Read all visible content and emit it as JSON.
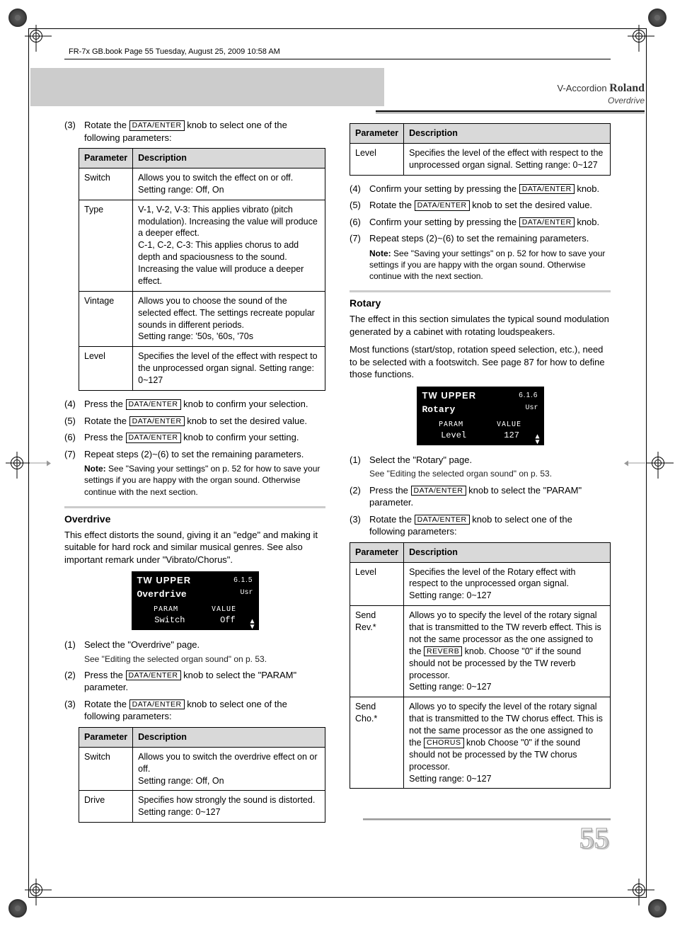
{
  "book_header": "FR-7x GB.book  Page 55  Tuesday, August 25, 2009  10:58 AM",
  "header": {
    "left": "V-Accordion",
    "brand": "Roland",
    "sub": "Overdrive"
  },
  "data_enter": "DATA/ENTER",
  "reverb_btn": "REVERB",
  "chorus_btn": "CHORUS",
  "left": {
    "step3": "Rotate the",
    "step3b": "knob to select one of the following parameters:",
    "table1": {
      "h1": "Parameter",
      "h2": "Description",
      "rows": [
        {
          "p": "Switch",
          "d": "Allows you to switch the effect on or off. Setting range: Off, On"
        },
        {
          "p": "Type",
          "d": "V-1, V-2, V-3: This applies vibrato (pitch modulation). Increasing the value will produce a deeper effect.\nC-1, C-2, C-3: This applies chorus to add depth and spaciousness to the sound. Increasing the value will produce a deeper effect."
        },
        {
          "p": "Vintage",
          "d": "Allows you to choose the sound of the selected effect. The settings recreate popular sounds in different periods.\nSetting range: '50s, '60s, '70s"
        },
        {
          "p": "Level",
          "d": "Specifies the level of the effect with respect to the unprocessed organ signal. Setting range: 0~127"
        }
      ]
    },
    "step4a": "Press the",
    "step4b": "knob to confirm your selection.",
    "step5a": "Rotate the",
    "step5b": "knob to set the desired value.",
    "step6a": "Press the",
    "step6b": "knob to confirm your setting.",
    "step7": "Repeat steps (2)~(6) to set the remaining parameters.",
    "step7note": "See \"Saving your settings\" on p. 52 for how to save your settings if you are happy with the organ sound. Otherwise continue with the next section.",
    "overdrive_h": "Overdrive",
    "overdrive_p": "This effect distorts the sound, giving it an \"edge\" and making it suitable for hard rock and similar musical genres. See also important remark under \"Vibrato/Chorus\".",
    "lcd1": {
      "top": "TW UPPER",
      "num": "6.1.5",
      "name": "Overdrive",
      "usr": "Usr",
      "p": "PARAM",
      "v": "VALUE",
      "pv": "Switch",
      "vv": "Off"
    },
    "ov1": "Select the \"Overdrive\" page.",
    "ov1s": "See \"Editing the selected organ sound\" on p. 53.",
    "ov2a": "Press the",
    "ov2b": "knob to select the \"PARAM\" parameter.",
    "ov3a": "Rotate the",
    "ov3b": "knob to select one of the following parameters:",
    "table2": {
      "h1": "Parameter",
      "h2": "Description",
      "rows": [
        {
          "p": "Switch",
          "d": "Allows you to switch the overdrive effect on or off.\nSetting range: Off, On"
        },
        {
          "p": "Drive",
          "d": "Specifies how strongly the sound is distorted.\nSetting range: 0~127"
        }
      ]
    }
  },
  "right": {
    "table_top": {
      "h1": "Parameter",
      "h2": "Description",
      "rows": [
        {
          "p": "Level",
          "d": "Specifies the level of the effect with respect to the unprocessed organ signal. Setting range: 0~127"
        }
      ]
    },
    "s4a": "Confirm your setting by pressing the",
    "s4b": "knob.",
    "s5a": "Rotate the",
    "s5b": "knob to set the desired value.",
    "s6a": "Confirm your setting by pressing the",
    "s6b": "knob.",
    "s7": "Repeat steps (2)~(6) to set the remaining parameters.",
    "s7note": "See \"Saving your settings\" on p. 52 for how to save your settings if you are happy with the organ sound. Otherwise continue with the next section.",
    "rotary_h": "Rotary",
    "rotary_p1": "The effect in this section simulates the typical sound modulation generated by a cabinet with rotating loudspeakers.",
    "rotary_p2": "Most functions (start/stop, rotation speed selection, etc.), need to be selected with a footswitch. See page 87 for how to define those functions.",
    "lcd2": {
      "top": "TW UPPER",
      "num": "6.1.6",
      "name": "Rotary",
      "usr": "Usr",
      "p": "PARAM",
      "v": "VALUE",
      "pv": "Level",
      "vv": "127"
    },
    "r1": "Select the \"Rotary\" page.",
    "r1s": "See \"Editing the selected organ sound\" on p. 53.",
    "r2a": "Press the",
    "r2b": "knob to select the \"PARAM\" parameter.",
    "r3a": "Rotate the",
    "r3b": "knob to select one of the following parameters:",
    "table_rot": {
      "h1": "Parameter",
      "h2": "Description",
      "rows": [
        {
          "p": "Level",
          "d": "Specifies the level of the Rotary effect with respect to the unprocessed organ signal.\nSetting range: 0~127"
        },
        {
          "p": "Send Rev.*",
          "d": "Allows yo to specify the level of the rotary signal that is transmitted to the TW reverb effect. This is not the same processor as the one assigned to the |REVERB| knob. Choose \"0\" if the sound should not be processed by the TW reverb processor.\nSetting range: 0~127"
        },
        {
          "p": "Send Cho.*",
          "d": "Allows yo to specify the level of the rotary signal that is transmitted to the TW chorus effect. This is not the same processor as the one assigned to the |CHORUS| knob Choose \"0\" if the sound should not be processed by the TW chorus processor.\nSetting range: 0~127"
        }
      ]
    }
  },
  "pagenum": "55",
  "notelabel": "Note:"
}
